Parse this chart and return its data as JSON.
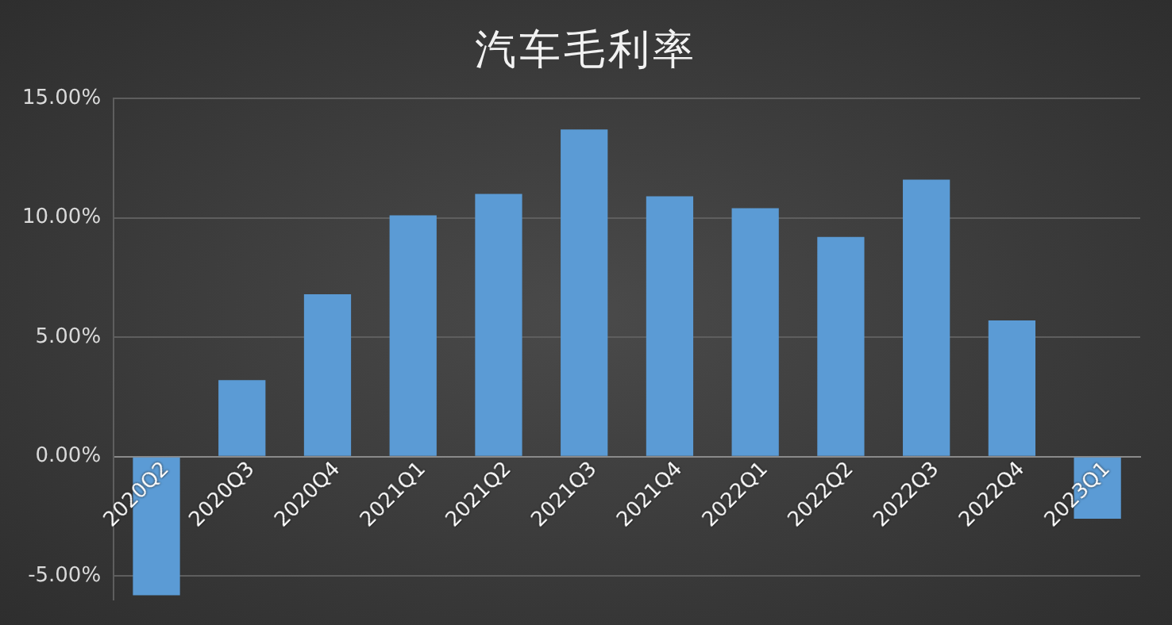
{
  "chart_data": {
    "type": "bar",
    "title": "汽车毛利率",
    "categories": [
      "2020Q2",
      "2020Q3",
      "2020Q4",
      "2021Q1",
      "2021Q2",
      "2021Q3",
      "2021Q4",
      "2022Q1",
      "2022Q2",
      "2022Q3",
      "2022Q4",
      "2023Q1"
    ],
    "values": [
      -5.8,
      3.2,
      6.8,
      10.1,
      11.0,
      13.7,
      10.9,
      10.4,
      9.2,
      11.6,
      5.7,
      -2.6
    ],
    "color": "#5b9bd5",
    "ylim": [
      -6,
      15
    ],
    "yticks": [
      {
        "value": -5,
        "label": "-5.00%"
      },
      {
        "value": 0,
        "label": "0.00%"
      },
      {
        "value": 5,
        "label": "5.00%"
      },
      {
        "value": 10,
        "label": "10.00%"
      },
      {
        "value": 15,
        "label": "15.00%"
      }
    ],
    "grid": "y",
    "legend": false
  }
}
